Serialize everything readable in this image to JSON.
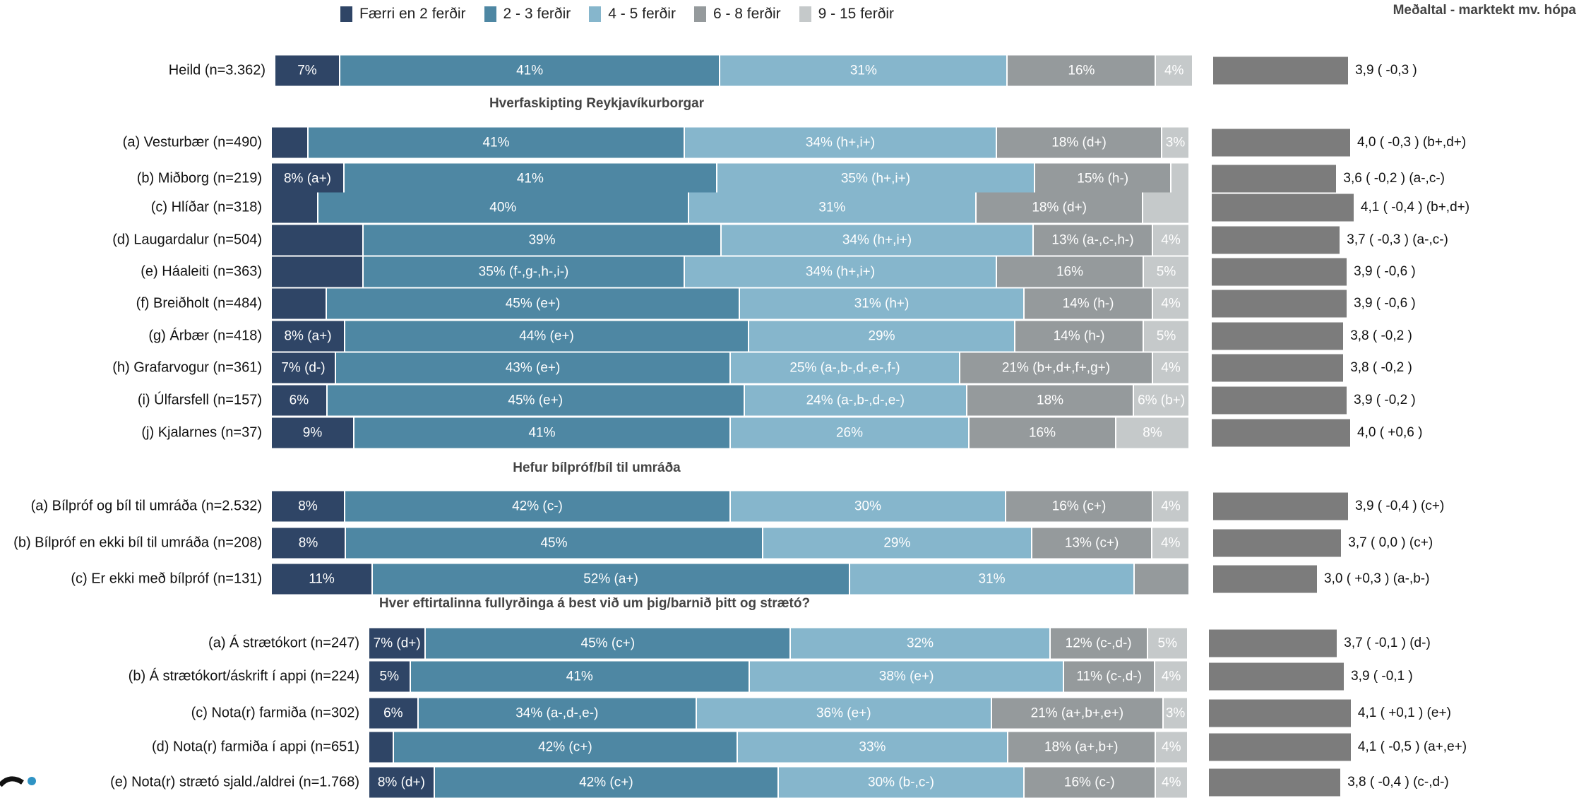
{
  "chart_data": {
    "type": "bar",
    "orientation": "horizontal",
    "stacked": true,
    "legend_position": "top",
    "avg_title": "Meðaltal - marktekt mv. hópa",
    "legend": [
      {
        "name": "Færri en 2 ferðir",
        "color": "#2f4566"
      },
      {
        "name": "2 - 3 ferðir",
        "color": "#4e87a3"
      },
      {
        "name": "4 - 5 ferðir",
        "color": "#86b6cc"
      },
      {
        "name": "6 - 8 ferðir",
        "color": "#959a9c"
      },
      {
        "name": "9 - 15 ferðir",
        "color": "#c5c9ca"
      }
    ],
    "sections": [
      {
        "title": "",
        "rows": [
          {
            "label": "Heild (n=3.362)",
            "values": [
              7,
              41,
              31,
              16,
              4
            ],
            "labels": [
              "7%",
              "41%",
              "31%",
              "16%",
              "4%"
            ],
            "avg": 3.9,
            "avg_text": "3,9 ( -0,3 )"
          }
        ]
      },
      {
        "title": "Hverfaskipting Reykjavíkurborgar",
        "rows": [
          {
            "label": "(a) Vesturbær (n=490)",
            "values": [
              4,
              41,
              34,
              18,
              3
            ],
            "labels": [
              "",
              "41%",
              "34% (h+,i+)",
              "18% (d+)",
              "3%"
            ],
            "avg": 4.0,
            "avg_text": "4,0 ( -0,3 ) (b+,d+)"
          },
          {
            "label": "(b) Miðborg (n=219)",
            "values": [
              8,
              41,
              35,
              15,
              2
            ],
            "labels": [
              "8% (a+)",
              "41%",
              "35% (h+,i+)",
              "15% (h-)",
              ""
            ],
            "avg": 3.6,
            "avg_text": "3,6 ( -0,2 ) (a-,c-)"
          },
          {
            "label": "(c) Hlíðar (n=318)",
            "values": [
              5,
              40,
              31,
              18,
              5
            ],
            "labels": [
              "",
              "40%",
              "31%",
              "18% (d+)",
              ""
            ],
            "avg": 4.1,
            "avg_text": "4,1 ( -0,4 ) (b+,d+)"
          },
          {
            "label": "(d) Laugardalur (n=504)",
            "values": [
              10,
              39,
              34,
              13,
              4
            ],
            "labels": [
              "",
              "39%",
              "34% (h+,i+)",
              "13% (a-,c-,h-)",
              "4%"
            ],
            "avg": 3.7,
            "avg_text": "3,7 ( -0,3 ) (a-,c-)"
          },
          {
            "label": "(e) Háaleiti (n=363)",
            "values": [
              10,
              35,
              34,
              16,
              5
            ],
            "labels": [
              "",
              "35% (f-,g-,h-,i-)",
              "34% (h+,i+)",
              "16%",
              "5%"
            ],
            "avg": 3.9,
            "avg_text": "3,9 ( -0,6 )"
          },
          {
            "label": "(f) Breiðholt (n=484)",
            "values": [
              6,
              45,
              31,
              14,
              4
            ],
            "labels": [
              "",
              "45% (e+)",
              "31% (h+)",
              "14% (h-)",
              "4%"
            ],
            "avg": 3.9,
            "avg_text": "3,9 ( -0,6 )"
          },
          {
            "label": "(g) Árbær (n=418)",
            "values": [
              8,
              44,
              29,
              14,
              5
            ],
            "labels": [
              "8% (a+)",
              "44% (e+)",
              "29%",
              "14% (h-)",
              "5%"
            ],
            "avg": 3.8,
            "avg_text": "3,8 ( -0,2 )"
          },
          {
            "label": "(h) Grafarvogur (n=361)",
            "values": [
              7,
              43,
              25,
              21,
              4
            ],
            "labels": [
              "7% (d-)",
              "43% (e+)",
              "25% (a-,b-,d-,e-,f-)",
              "21% (b+,d+,f+,g+)",
              "4%"
            ],
            "avg": 3.8,
            "avg_text": "3,8 ( -0,2 )"
          },
          {
            "label": "(i) Úlfarsfell (n=157)",
            "values": [
              6,
              45,
              24,
              18,
              6
            ],
            "labels": [
              "6%",
              "45% (e+)",
              "24% (a-,b-,d-,e-)",
              "18%",
              "6% (b+)"
            ],
            "avg": 3.9,
            "avg_text": "3,9 ( -0,2 )"
          },
          {
            "label": "(j) Kjalarnes (n=37)",
            "values": [
              9,
              41,
              26,
              16,
              8
            ],
            "labels": [
              "9%",
              "41%",
              "26%",
              "16%",
              "8%"
            ],
            "avg": 4.0,
            "avg_text": "4,0 ( +0,6 )"
          }
        ]
      },
      {
        "title": "Hefur bílpróf/bíl til umráða",
        "rows": [
          {
            "label": "(a) Bílpróf og bíl til umráða (n=2.532)",
            "values": [
              8,
              42,
              30,
              16,
              4
            ],
            "labels": [
              "8%",
              "42% (c-)",
              "30%",
              "16% (c+)",
              "4%"
            ],
            "avg": 3.9,
            "avg_text": "3,9 ( -0,4 ) (c+)"
          },
          {
            "label": "(b) Bílpróf en ekki bíl til umráða (n=208)",
            "values": [
              8,
              45,
              29,
              13,
              4
            ],
            "labels": [
              "8%",
              "45%",
              "29%",
              "13% (c+)",
              "4%"
            ],
            "avg": 3.7,
            "avg_text": "3,7 ( 0,0 ) (c+)"
          },
          {
            "label": "(c) Er ekki með bílpróf (n=131)",
            "values": [
              11,
              52,
              31,
              6,
              0
            ],
            "labels": [
              "11%",
              "52% (a+)",
              "31%",
              "",
              ""
            ],
            "avg": 3.0,
            "avg_text": "3,0 ( +0,3 ) (a-,b-)"
          }
        ]
      },
      {
        "title": "Hver eftirtalinna fullyrðinga á best við um þig/barnið þitt og strætó?",
        "rows": [
          {
            "label": "(a) Á strætókort (n=247)",
            "values": [
              7,
              45,
              32,
              12,
              5
            ],
            "labels": [
              "7% (d+)",
              "45% (c+)",
              "32%",
              "12% (c-,d-)",
              "5%"
            ],
            "avg": 3.7,
            "avg_text": "3,7 ( -0,1 ) (d-)"
          },
          {
            "label": "(b) Á strætókort/áskrift í appi (n=224)",
            "values": [
              5,
              41,
              38,
              11,
              4
            ],
            "labels": [
              "5%",
              "41%",
              "38% (e+)",
              "11% (c-,d-)",
              "4%"
            ],
            "avg": 3.9,
            "avg_text": "3,9 ( -0,1 )"
          },
          {
            "label": "(c) Nota(r) farmiða (n=302)",
            "values": [
              6,
              34,
              36,
              21,
              3
            ],
            "labels": [
              "6%",
              "34% (a-,d-,e-)",
              "36% (e+)",
              "21% (a+,b+,e+)",
              "3%"
            ],
            "avg": 4.1,
            "avg_text": "4,1 ( +0,1 ) (e+)"
          },
          {
            "label": "(d) Nota(r) farmiða í appi (n=651)",
            "values": [
              3,
              42,
              33,
              18,
              4
            ],
            "labels": [
              "",
              "42% (c+)",
              "33%",
              "18% (a+,b+)",
              "4%"
            ],
            "avg": 4.1,
            "avg_text": "4,1 ( -0,5 ) (a+,e+)"
          },
          {
            "label": "(e) Nota(r) strætó sjald./aldrei (n=1.768)",
            "values": [
              8,
              42,
              30,
              16,
              4
            ],
            "labels": [
              "8% (d+)",
              "42% (c+)",
              "30% (b-,c-)",
              "16% (c-)",
              "4%"
            ],
            "avg": 3.8,
            "avg_text": "3,8 ( -0,4 ) (c-,d-)"
          }
        ]
      }
    ]
  }
}
